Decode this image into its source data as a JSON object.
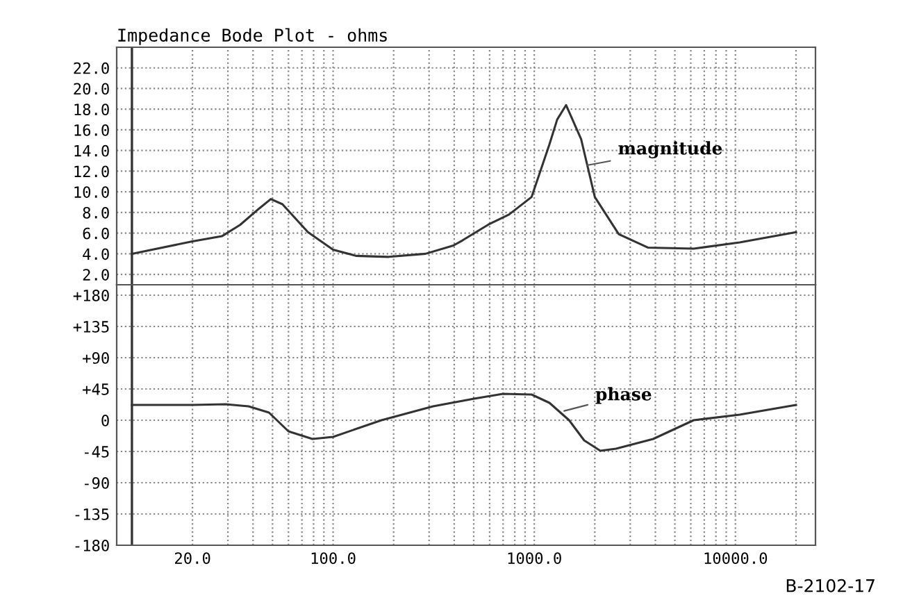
{
  "chart_data": [
    {
      "type": "line",
      "title": "Impedance Bode Plot - ohms",
      "log": "x",
      "grid": true,
      "tick_labels": "y",
      "marker": "none",
      "line_style": "solid",
      "xlim": [
        8.4,
        25000
      ],
      "ylim": [
        1.0,
        24.0
      ],
      "xticks": [
        {
          "value": 10,
          "label": null
        },
        {
          "value": 20,
          "label": null
        },
        {
          "value": 30,
          "label": null
        },
        {
          "value": 40,
          "label": null
        },
        {
          "value": 50,
          "label": null
        },
        {
          "value": 60,
          "label": null
        },
        {
          "value": 70,
          "label": null
        },
        {
          "value": 80,
          "label": null
        },
        {
          "value": 90,
          "label": null
        },
        {
          "value": 100,
          "label": null
        },
        {
          "value": 200,
          "label": null
        },
        {
          "value": 300,
          "label": null
        },
        {
          "value": 400,
          "label": null
        },
        {
          "value": 500,
          "label": null
        },
        {
          "value": 600,
          "label": null
        },
        {
          "value": 700,
          "label": null
        },
        {
          "value": 800,
          "label": null
        },
        {
          "value": 900,
          "label": null
        },
        {
          "value": 1000,
          "label": null
        },
        {
          "value": 2000,
          "label": null
        },
        {
          "value": 3000,
          "label": null
        },
        {
          "value": 4000,
          "label": null
        },
        {
          "value": 5000,
          "label": null
        },
        {
          "value": 6000,
          "label": null
        },
        {
          "value": 7000,
          "label": null
        },
        {
          "value": 8000,
          "label": null
        },
        {
          "value": 9000,
          "label": null
        },
        {
          "value": 10000,
          "label": null
        },
        {
          "value": 20000,
          "label": null
        }
      ],
      "yticks": [
        {
          "value": 2,
          "label": "2.0"
        },
        {
          "value": 4,
          "label": "4.0"
        },
        {
          "value": 6,
          "label": "6.0"
        },
        {
          "value": 8,
          "label": "8.0"
        },
        {
          "value": 10,
          "label": "10.0"
        },
        {
          "value": 12,
          "label": "12.0"
        },
        {
          "value": 14,
          "label": "14.0"
        },
        {
          "value": 16,
          "label": "16.0"
        },
        {
          "value": 18,
          "label": "18.0"
        },
        {
          "value": 20,
          "label": "20.0"
        },
        {
          "value": 22,
          "label": "22.0"
        }
      ],
      "ref_lines": [
        {
          "axis": "x",
          "value": 10,
          "color": "#333333",
          "line_style": "solid"
        }
      ],
      "series": [
        {
          "color": "#333333",
          "x": [
            10,
            20,
            28,
            34.5,
            43,
            49,
            56,
            75,
            100,
            130,
            189,
            288,
            396,
            440,
            600,
            749,
            970,
            1190,
            1300,
            1440,
            1710,
            2000,
            2630,
            3670,
            6200,
            10500,
            20000
          ],
          "values": [
            4.0,
            5.2,
            5.7,
            6.8,
            8.4,
            9.3,
            8.8,
            6.1,
            4.4,
            3.8,
            3.7,
            4.0,
            4.8,
            5.3,
            6.9,
            7.8,
            9.5,
            14.6,
            17.0,
            18.4,
            15.1,
            9.5,
            5.9,
            4.6,
            4.5,
            5.1,
            6.1
          ]
        }
      ],
      "annotations": [
        {
          "text": "magnitude",
          "x": 1750,
          "y": 12.5
        }
      ]
    },
    {
      "type": "line",
      "log": "x",
      "grid": true,
      "marker": "none",
      "line_style": "solid",
      "xlim": [
        8.4,
        25000
      ],
      "ylim": [
        -180,
        195
      ],
      "xticks": [
        {
          "value": 10,
          "label": null
        },
        {
          "value": 20,
          "label": "20.0"
        },
        {
          "value": 30,
          "label": null
        },
        {
          "value": 40,
          "label": null
        },
        {
          "value": 50,
          "label": null
        },
        {
          "value": 60,
          "label": null
        },
        {
          "value": 70,
          "label": null
        },
        {
          "value": 80,
          "label": null
        },
        {
          "value": 90,
          "label": null
        },
        {
          "value": 100,
          "label": "100.0"
        },
        {
          "value": 200,
          "label": null
        },
        {
          "value": 300,
          "label": null
        },
        {
          "value": 400,
          "label": null
        },
        {
          "value": 500,
          "label": null
        },
        {
          "value": 600,
          "label": null
        },
        {
          "value": 700,
          "label": null
        },
        {
          "value": 800,
          "label": null
        },
        {
          "value": 900,
          "label": null
        },
        {
          "value": 1000,
          "label": "1000.0"
        },
        {
          "value": 2000,
          "label": null
        },
        {
          "value": 3000,
          "label": null
        },
        {
          "value": 4000,
          "label": null
        },
        {
          "value": 5000,
          "label": null
        },
        {
          "value": 6000,
          "label": null
        },
        {
          "value": 7000,
          "label": null
        },
        {
          "value": 8000,
          "label": null
        },
        {
          "value": 9000,
          "label": null
        },
        {
          "value": 10000,
          "label": "10000.0"
        },
        {
          "value": 20000,
          "label": null
        }
      ],
      "yticks": [
        {
          "value": -180,
          "label": "-180"
        },
        {
          "value": -135,
          "label": "-135"
        },
        {
          "value": -90,
          "label": "-90"
        },
        {
          "value": -45,
          "label": "-45"
        },
        0,
        {
          "value": 45,
          "label": "+45"
        },
        {
          "value": 90,
          "label": "+90"
        },
        {
          "value": 135,
          "label": "+135"
        },
        {
          "value": 180,
          "label": "+180"
        }
      ],
      "ref_lines": [
        {
          "axis": "x",
          "value": 10,
          "color": "#333333",
          "line_style": "solid"
        }
      ],
      "series": [
        {
          "color": "#333333",
          "x": [
            10,
            20,
            29.2,
            38,
            48,
            60,
            79,
            100,
            174,
            314,
            502,
            700,
            970,
            1190,
            1490,
            1770,
            2130,
            2550,
            3900,
            6200,
            10500,
            20000
          ],
          "values": [
            22,
            22,
            23,
            20,
            11,
            -16,
            -27,
            -24,
            0,
            20,
            31,
            38,
            37,
            25,
            0,
            -29,
            -44,
            -41,
            -27,
            0,
            8,
            22
          ]
        }
      ],
      "annotations": [
        {
          "text": "phase",
          "x": 1350,
          "y": 12
        },
        "B-2102-17"
      ]
    }
  ]
}
